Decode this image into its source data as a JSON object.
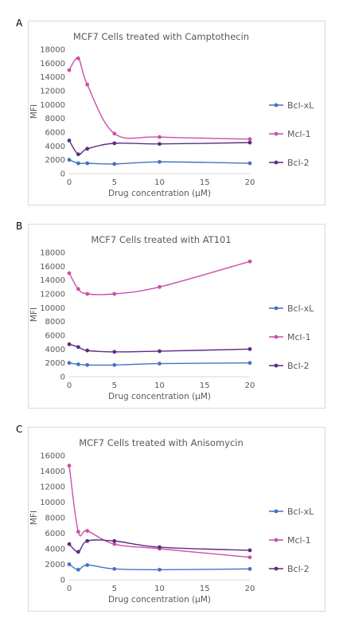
{
  "colors": {
    "bcl_xl": "#4472c4",
    "mcl_1": "#cc4fa9",
    "bcl_2": "#5b2c83"
  },
  "chart_data": [
    {
      "type": "line",
      "panel_label": "A",
      "title": "MCF7 Cells treated with Camptothecin",
      "xlabel": "Drug concentration (µM)",
      "ylabel": "MFI",
      "xlim": [
        0,
        20
      ],
      "ylim": [
        0,
        18000
      ],
      "xticks": [
        0,
        5,
        10,
        15,
        20
      ],
      "yticks": [
        0,
        2000,
        4000,
        6000,
        8000,
        10000,
        12000,
        14000,
        16000,
        18000
      ],
      "legend_position": "right",
      "x": [
        0,
        1,
        2,
        5,
        10,
        20
      ],
      "series": [
        {
          "name": "Bcl-xL",
          "color": "#4472c4",
          "values": [
            2000,
            1500,
            1500,
            1400,
            1700,
            1500
          ]
        },
        {
          "name": "Mcl-1",
          "color": "#cc4fa9",
          "values": [
            15000,
            16700,
            12900,
            5800,
            5300,
            5000
          ]
        },
        {
          "name": "Bcl-2",
          "color": "#5b2c83",
          "values": [
            4800,
            2800,
            3600,
            4400,
            4300,
            4500
          ]
        }
      ]
    },
    {
      "type": "line",
      "panel_label": "B",
      "title": "MCF7 Cells treated with AT101",
      "xlabel": "Drug concentration (µM)",
      "ylabel": "MFI",
      "xlim": [
        0,
        20
      ],
      "ylim": [
        0,
        18000
      ],
      "xticks": [
        0,
        5,
        10,
        15,
        20
      ],
      "yticks": [
        0,
        2000,
        4000,
        6000,
        8000,
        10000,
        12000,
        14000,
        16000,
        18000
      ],
      "legend_position": "right",
      "x": [
        0,
        1,
        2,
        5,
        10,
        20
      ],
      "series": [
        {
          "name": "Bcl-xL",
          "color": "#4472c4",
          "values": [
            2000,
            1800,
            1700,
            1700,
            1900,
            2000
          ]
        },
        {
          "name": "Mcl-1",
          "color": "#cc4fa9",
          "values": [
            15000,
            12700,
            12000,
            12000,
            13000,
            16700
          ]
        },
        {
          "name": "Bcl-2",
          "color": "#5b2c83",
          "values": [
            4700,
            4300,
            3800,
            3600,
            3700,
            4000
          ]
        }
      ]
    },
    {
      "type": "line",
      "panel_label": "C",
      "title": "MCF7 Cells treated with Anisomycin",
      "xlabel": "Drug concentration (µM)",
      "ylabel": "MFI",
      "xlim": [
        0,
        20
      ],
      "ylim": [
        0,
        16000
      ],
      "xticks": [
        0,
        5,
        10,
        15,
        20
      ],
      "yticks": [
        0,
        2000,
        4000,
        6000,
        8000,
        10000,
        12000,
        14000,
        16000
      ],
      "legend_position": "right",
      "x": [
        0,
        1,
        2,
        5,
        10,
        20
      ],
      "series": [
        {
          "name": "Bcl-xL",
          "color": "#4472c4",
          "values": [
            2000,
            1300,
            1900,
            1400,
            1300,
            1400
          ]
        },
        {
          "name": "Mcl-1",
          "color": "#cc4fa9",
          "values": [
            14700,
            6200,
            6300,
            4600,
            4000,
            2900
          ]
        },
        {
          "name": "Bcl-2",
          "color": "#5b2c83",
          "values": [
            4600,
            3600,
            5000,
            5000,
            4200,
            3800
          ]
        }
      ]
    }
  ]
}
